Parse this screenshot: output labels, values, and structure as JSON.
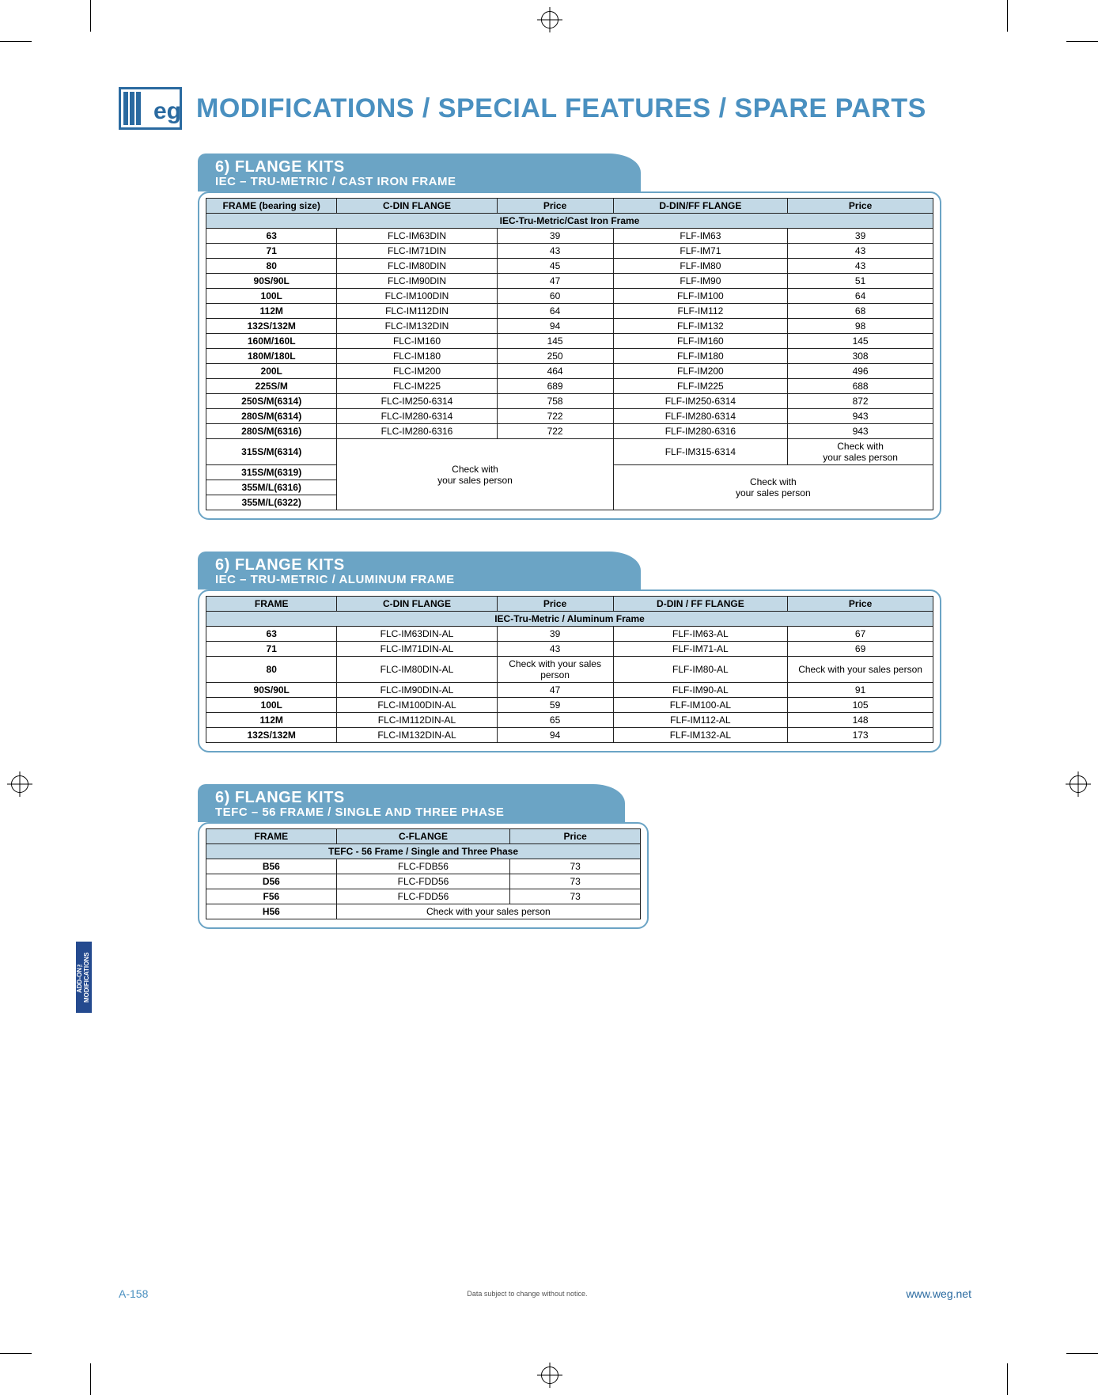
{
  "logo_text": "WEG",
  "page_title": "MODIFICATIONS / SPECIAL FEATURES / SPARE PARTS",
  "side_tab": "ADD-ON™\nMODIFICATIONS",
  "footer": {
    "page_number": "A-158",
    "disclaimer": "Data subject to change without notice.",
    "url": "www.weg.net"
  },
  "colors": {
    "accent": "#6ba4c5",
    "title": "#4a90c0",
    "header_bg": "#c3d9e6",
    "side_tab_bg": "#244a8f"
  },
  "section1": {
    "tab_title": "6) FLANGE KITS",
    "tab_sub": "IEC – TRU-METRIC  /  CAST IRON FRAME",
    "headers": [
      "FRAME (bearing size)",
      "C-DIN FLANGE",
      "Price",
      "D-DIN/FF FLANGE",
      "Price"
    ],
    "sub_header": "IEC-Tru-Metric/Cast Iron Frame",
    "rows": [
      [
        "63",
        "FLC-IM63DIN",
        "39",
        "FLF-IM63",
        "39"
      ],
      [
        "71",
        "FLC-IM71DIN",
        "43",
        "FLF-IM71",
        "43"
      ],
      [
        "80",
        "FLC-IM80DIN",
        "45",
        "FLF-IM80",
        "43"
      ],
      [
        "90S/90L",
        "FLC-IM90DIN",
        "47",
        "FLF-IM90",
        "51"
      ],
      [
        "100L",
        "FLC-IM100DIN",
        "60",
        "FLF-IM100",
        "64"
      ],
      [
        "112M",
        "FLC-IM112DIN",
        "64",
        "FLF-IM112",
        "68"
      ],
      [
        "132S/132M",
        "FLC-IM132DIN",
        "94",
        "FLF-IM132",
        "98"
      ],
      [
        "160M/160L",
        "FLC-IM160",
        "145",
        "FLF-IM160",
        "145"
      ],
      [
        "180M/180L",
        "FLC-IM180",
        "250",
        "FLF-IM180",
        "308"
      ],
      [
        "200L",
        "FLC-IM200",
        "464",
        "FLF-IM200",
        "496"
      ],
      [
        "225S/M",
        "FLC-IM225",
        "689",
        "FLF-IM225",
        "688"
      ],
      [
        "250S/M(6314)",
        "FLC-IM250-6314",
        "758",
        "FLF-IM250-6314",
        "872"
      ],
      [
        "280S/M(6314)",
        "FLC-IM280-6314",
        "722",
        "FLF-IM280-6314",
        "943"
      ],
      [
        "280S/M(6316)",
        "FLC-IM280-6316",
        "722",
        "FLF-IM280-6316",
        "943"
      ]
    ],
    "row_315_frame": "315S/M(6314)",
    "row_315_ddin": "FLF-IM315-6314",
    "row_315_price": "Check with\nyour sales person",
    "merged_cdin": "Check with\nyour sales person",
    "merged_ddin": "Check with\nyour sales person",
    "tail_frames": [
      "315S/M(6319)",
      "355M/L(6316)",
      "355M/L(6322)"
    ]
  },
  "section2": {
    "tab_title": "6) FLANGE KITS",
    "tab_sub": "IEC – TRU-METRIC  /  ALUMINUM FRAME",
    "headers": [
      "FRAME",
      "C-DIN FLANGE",
      "Price",
      "D-DIN / FF FLANGE",
      "Price"
    ],
    "sub_header": "IEC-Tru-Metric / Aluminum Frame",
    "rows": [
      [
        "63",
        "FLC-IM63DIN-AL",
        "39",
        "FLF-IM63-AL",
        "67"
      ],
      [
        "71",
        "FLC-IM71DIN-AL",
        "43",
        "FLF-IM71-AL",
        "69"
      ],
      [
        "80",
        "FLC-IM80DIN-AL",
        "Check with your sales person",
        "FLF-IM80-AL",
        "Check with your sales person"
      ],
      [
        "90S/90L",
        "FLC-IM90DIN-AL",
        "47",
        "FLF-IM90-AL",
        "91"
      ],
      [
        "100L",
        "FLC-IM100DIN-AL",
        "59",
        "FLF-IM100-AL",
        "105"
      ],
      [
        "112M",
        "FLC-IM112DIN-AL",
        "65",
        "FLF-IM112-AL",
        "148"
      ],
      [
        "132S/132M",
        "FLC-IM132DIN-AL",
        "94",
        "FLF-IM132-AL",
        "173"
      ]
    ]
  },
  "section3": {
    "tab_title": "6) FLANGE KITS",
    "tab_sub": "TEFC – 56 FRAME / SINGLE AND THREE PHASE",
    "headers": [
      "FRAME",
      "C-FLANGE",
      "Price"
    ],
    "sub_header": "TEFC - 56 Frame / Single and Three Phase",
    "rows": [
      [
        "B56",
        "FLC-FDB56",
        "73"
      ],
      [
        "D56",
        "FLC-FDD56",
        "73"
      ],
      [
        "F56",
        "FLC-FDD56",
        "73"
      ]
    ],
    "last_frame": "H56",
    "last_note": "Check with your sales person"
  }
}
